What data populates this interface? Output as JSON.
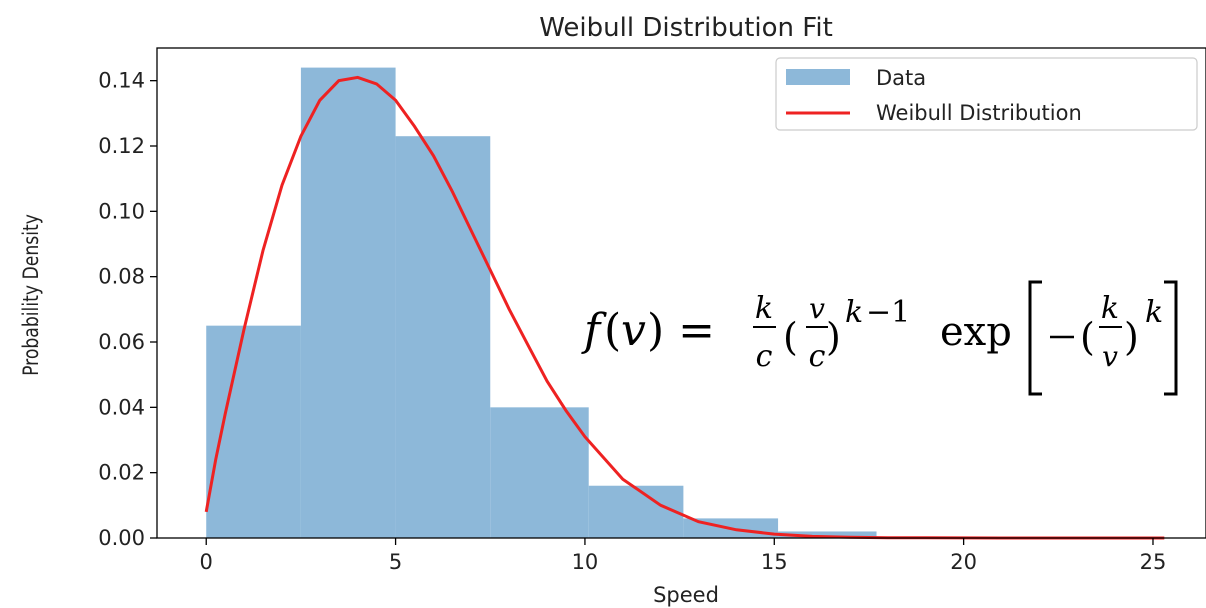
{
  "chart_data": {
    "type": "bar",
    "title": "Weibull Distribution Fit",
    "xlabel": "Speed",
    "ylabel": "Probability Density",
    "xlim": [
      -1.3,
      26.4
    ],
    "ylim": [
      0,
      0.15
    ],
    "xticks": [
      0,
      5,
      10,
      15,
      20,
      25
    ],
    "yticks": [
      0.0,
      0.02,
      0.04,
      0.06,
      0.08,
      0.1,
      0.12,
      0.14
    ],
    "legend_position": "top-right",
    "grid": false,
    "histogram": {
      "name": "Data",
      "color": "#8db8d9",
      "bin_edges": [
        0.0,
        2.5,
        5.0,
        7.5,
        10.1,
        12.6,
        15.1,
        17.7
      ],
      "values": [
        0.065,
        0.144,
        0.123,
        0.04,
        0.016,
        0.006,
        0.002
      ]
    },
    "series": [
      {
        "name": "Weibull Distribution",
        "color": "#ee2222",
        "x": [
          0,
          0.25,
          0.5,
          1,
          1.5,
          2,
          2.5,
          3,
          3.5,
          4,
          4.5,
          5,
          5.5,
          6,
          6.5,
          7,
          7.5,
          8,
          8.5,
          9,
          9.5,
          10,
          11,
          12,
          13,
          14,
          15,
          16,
          17,
          18,
          19,
          20,
          21,
          22,
          23,
          24,
          25.3
        ],
        "y": [
          0.008,
          0.024,
          0.038,
          0.064,
          0.088,
          0.108,
          0.123,
          0.134,
          0.14,
          0.141,
          0.139,
          0.134,
          0.126,
          0.117,
          0.106,
          0.094,
          0.082,
          0.07,
          0.059,
          0.048,
          0.039,
          0.031,
          0.018,
          0.01,
          0.005,
          0.0025,
          0.0012,
          0.0005,
          0.0002,
          0.0001,
          5e-05,
          2e-05,
          1e-05,
          0,
          0,
          0,
          0
        ]
      }
    ],
    "annotation": "f(v) = k/c (v/c)^(k−1) exp[−(k/v)^k]"
  }
}
